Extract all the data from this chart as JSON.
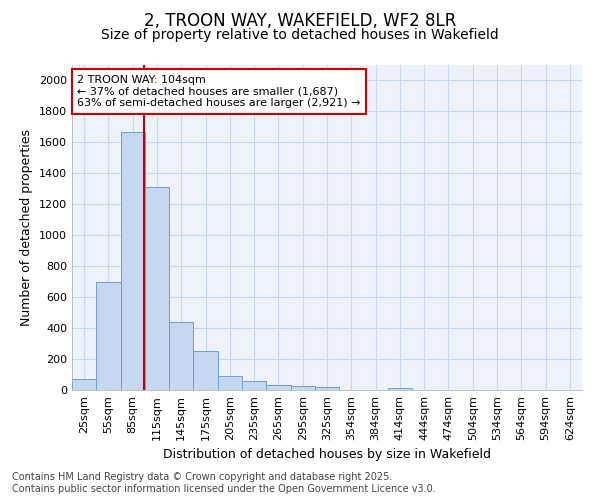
{
  "title": "2, TROON WAY, WAKEFIELD, WF2 8LR",
  "subtitle": "Size of property relative to detached houses in Wakefield",
  "xlabel": "Distribution of detached houses by size in Wakefield",
  "ylabel": "Number of detached properties",
  "categories": [
    "25sqm",
    "55sqm",
    "85sqm",
    "115sqm",
    "145sqm",
    "175sqm",
    "205sqm",
    "235sqm",
    "265sqm",
    "295sqm",
    "325sqm",
    "354sqm",
    "384sqm",
    "414sqm",
    "444sqm",
    "474sqm",
    "504sqm",
    "534sqm",
    "564sqm",
    "594sqm",
    "624sqm"
  ],
  "values": [
    70,
    700,
    1665,
    1310,
    440,
    250,
    90,
    55,
    30,
    25,
    20,
    2,
    0,
    15,
    0,
    0,
    0,
    0,
    0,
    0,
    0
  ],
  "bar_color": "#c5d8f0",
  "bar_edge_color": "#6a9fd8",
  "red_line_bin": 2,
  "annotation_line1": "2 TROON WAY: 104sqm",
  "annotation_line2": "← 37% of detached houses are smaller (1,687)",
  "annotation_line3": "63% of semi-detached houses are larger (2,921) →",
  "annotation_box_facecolor": "#ffffff",
  "annotation_box_edgecolor": "#cc0000",
  "ylim": [
    0,
    2100
  ],
  "yticks": [
    0,
    200,
    400,
    600,
    800,
    1000,
    1200,
    1400,
    1600,
    1800,
    2000
  ],
  "footer1": "Contains HM Land Registry data © Crown copyright and database right 2025.",
  "footer2": "Contains public sector information licensed under the Open Government Licence v3.0.",
  "bg_color": "#ffffff",
  "plot_bg_color": "#edf2fb",
  "grid_color": "#c8d8f0",
  "title_fontsize": 12,
  "subtitle_fontsize": 10,
  "axis_label_fontsize": 9,
  "tick_fontsize": 8,
  "footer_fontsize": 7
}
